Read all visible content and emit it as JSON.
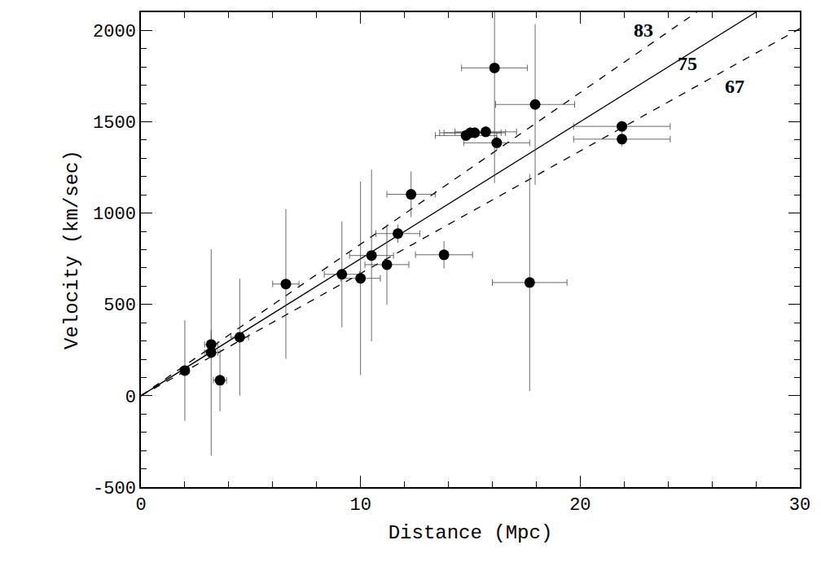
{
  "chart_data": {
    "type": "scatter",
    "x_label": "Distance (Mpc)",
    "y_label": "Velocity (km/sec)",
    "xlim": [
      0,
      30
    ],
    "ylim": [
      -500,
      2100
    ],
    "xticks": [
      0,
      10,
      20,
      30
    ],
    "yticks": [
      -500,
      0,
      500,
      1000,
      1500,
      2000
    ],
    "grid": false,
    "marker": "circle",
    "color": "#000000",
    "points": {
      "x": [
        2.0,
        3.2,
        3.2,
        3.6,
        4.5,
        6.6,
        9.15,
        10.0,
        10.5,
        11.2,
        11.7,
        12.3,
        13.8,
        14.8,
        15.0,
        15.2,
        15.7,
        16.2,
        16.1,
        17.95,
        17.7,
        21.9,
        21.9
      ],
      "y": [
        138,
        237,
        281,
        85,
        321,
        612,
        665,
        643,
        768,
        718,
        888,
        1103,
        772,
        1425,
        1440,
        1440,
        1445,
        1385,
        1795,
        1595,
        620,
        1475,
        1405
      ],
      "x_err": [
        0.2,
        0.3,
        0.3,
        0.3,
        0.4,
        0.6,
        0.8,
        0.9,
        1.0,
        1.0,
        1.0,
        1.1,
        1.3,
        1.4,
        1.4,
        1.4,
        1.4,
        1.5,
        1.5,
        1.8,
        1.7,
        2.2,
        2.2
      ],
      "y_err": [
        275,
        565,
        80,
        170,
        320,
        410,
        290,
        530,
        470,
        220,
        50,
        125,
        75,
        30,
        30,
        30,
        30,
        40,
        630,
        440,
        595,
        30,
        40
      ]
    },
    "lines": [
      {
        "name": "83",
        "slope": 83,
        "line_style": "dash"
      },
      {
        "name": "75",
        "slope": 75,
        "line_style": "solid"
      },
      {
        "name": "67",
        "slope": 67,
        "line_style": "dash"
      }
    ]
  }
}
